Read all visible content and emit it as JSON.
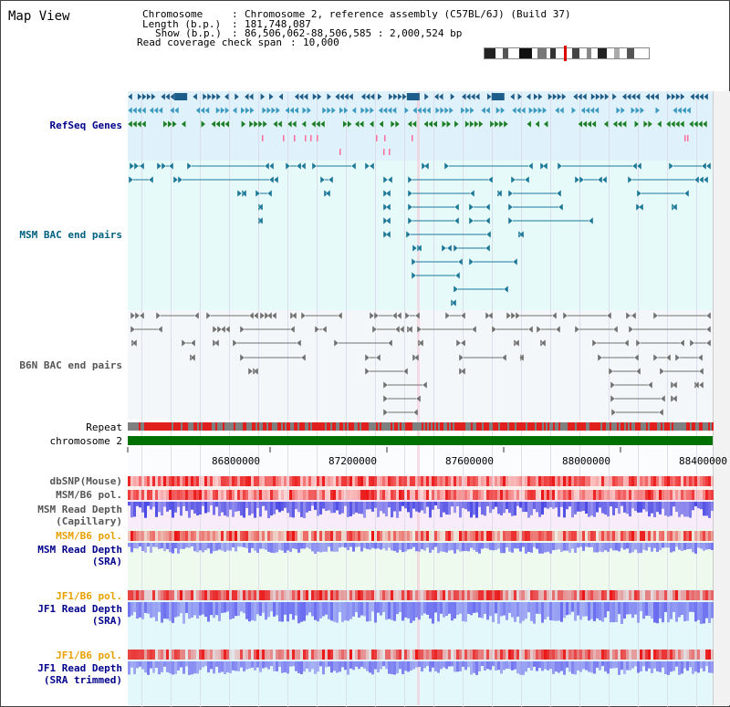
{
  "app_title": "Map View",
  "info": {
    "chromosome_label": "Chromosome",
    "chromosome_value": "Chromosome 2, reference assembly (C57BL/6J) (Build 37)",
    "length_label": "Length (b.p.)",
    "length_value": "181,748,087",
    "show_label": "Show (b.p.)",
    "show_value": "86,506,062-88,506,585 : 2,000,524 bp",
    "coverage_label": "Read coverage check span",
    "coverage_value": "10,000"
  },
  "tracks": {
    "refseq": "RefSeq Genes",
    "msm_bac": "MSM BAC end pairs",
    "b6n_bac": "B6N BAC end pairs",
    "repeat": "Repeat",
    "chromosome": "chromosome 2",
    "dbsnp": "dbSNP(Mouse)",
    "msm_b6_pol_1": "MSM/B6 pol.",
    "msm_read_depth_cap_1": "MSM Read Depth",
    "msm_read_depth_cap_2": "(Capillary)",
    "msm_b6_pol_2": "MSM/B6 pol.",
    "msm_read_depth_sra_1": "MSM Read Depth",
    "msm_read_depth_sra_2": "(SRA)",
    "jf1_b6_pol_1": "JF1/B6 pol.",
    "jf1_read_depth_sra_1": "JF1 Read Depth",
    "jf1_read_depth_sra_2": "(SRA)",
    "jf1_b6_pol_2": "JF1/B6 pol.",
    "jf1_read_depth_trim_1": "JF1 Read Depth",
    "jf1_read_depth_trim_2": "(SRA trimmed)"
  },
  "axis_ticks": [
    "86800000",
    "87200000",
    "87600000",
    "88000000",
    "88400000"
  ],
  "colors": {
    "refseq_bg": "#dff1fb",
    "msm_bg": "#e6fafa",
    "b6n_bg": "#f3f7f9",
    "read_depth_cap_bg": "#f8ecfb",
    "read_depth_sra_bg": "#eefaee",
    "jf1_bg": "#e2f8fa",
    "msm_label": "#006080",
    "blue_label": "#00008b",
    "orange_label": "#e8a000",
    "gray_label": "#555555",
    "chromosome_bar": "#007000",
    "repeat_red": "#e0201c",
    "repeat_gray": "#808080",
    "depth_blue": "#4a4aee"
  }
}
